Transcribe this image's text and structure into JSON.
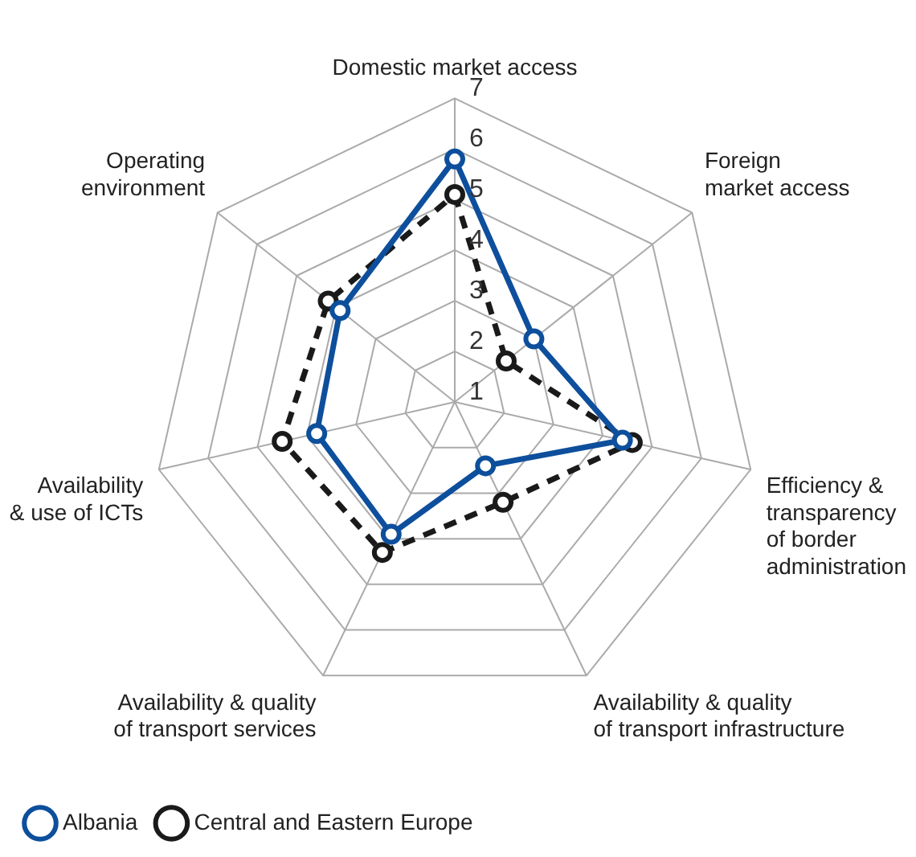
{
  "chart_data": {
    "type": "radar",
    "categories": [
      "Domestic market access",
      "Foreign\nmarket access",
      "Efficiency &\ntransparency\nof border\nadministration",
      "Availability & quality\nof transport infrastructure",
      "Availability & quality\nof transport services",
      "Availability\n& use of ICTs",
      "Operating\nenvironment"
    ],
    "series": [
      {
        "name": "Albania",
        "color": "#0d4f9c",
        "values": [
          5.8,
          3.0,
          4.4,
          2.4,
          3.9,
          3.8,
          3.9
        ],
        "line_style": "solid"
      },
      {
        "name": "Central and Eastern Europe",
        "color": "#1a1a1a",
        "values": [
          5.1,
          2.3,
          4.6,
          3.2,
          4.3,
          4.5,
          4.2
        ],
        "line_style": "dashed"
      }
    ],
    "ylim": [
      1,
      7
    ],
    "yticks": [
      1,
      2,
      3,
      4,
      5,
      6,
      7
    ],
    "grid": true,
    "legend": "bottom",
    "marker": "circle"
  }
}
